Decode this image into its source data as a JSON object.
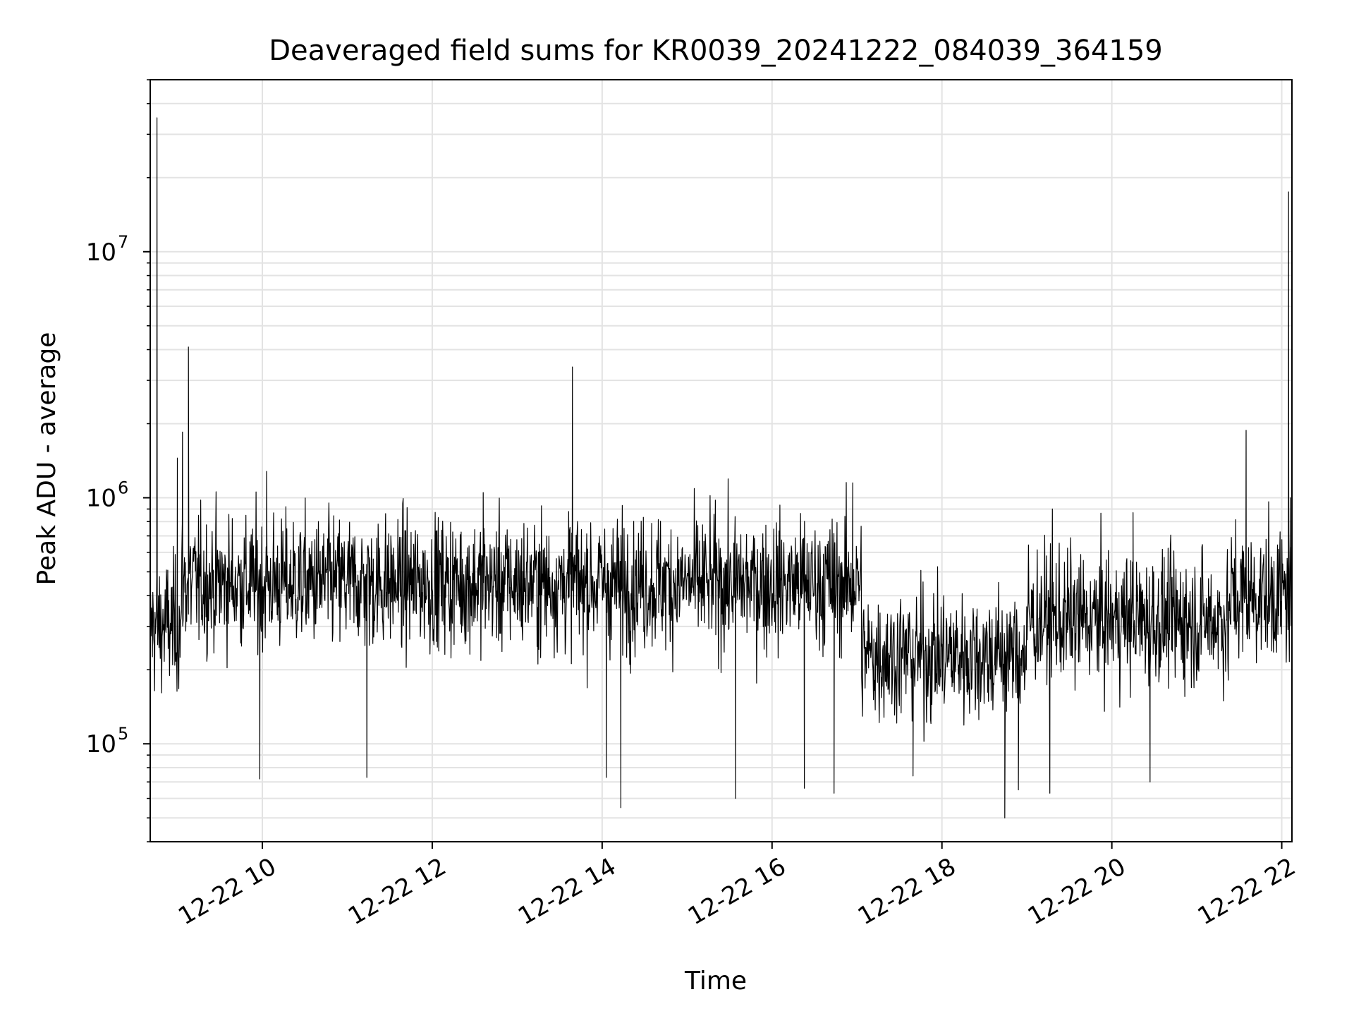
{
  "chart_data": {
    "type": "line",
    "title": "Deaveraged field sums for KR0039_20241222_084039_364159",
    "xlabel": "Time",
    "ylabel": "Peak ADU - average",
    "y_scale": "log",
    "ylim": [
      40000,
      50000000
    ],
    "x_unit": "hours on 12-22",
    "xlim": [
      8.68,
      22.12
    ],
    "grid": "major and minor, light gray",
    "x_ticks": [
      {
        "value": 10,
        "label": "12-22 10"
      },
      {
        "value": 12,
        "label": "12-22 12"
      },
      {
        "value": 14,
        "label": "12-22 14"
      },
      {
        "value": 16,
        "label": "12-22 16"
      },
      {
        "value": 18,
        "label": "12-22 18"
      },
      {
        "value": 20,
        "label": "12-22 20"
      },
      {
        "value": 22,
        "label": "12-22 22"
      }
    ],
    "y_ticks": [
      {
        "value": 100000,
        "base": "10",
        "exp": "5"
      },
      {
        "value": 1000000,
        "base": "10",
        "exp": "6"
      },
      {
        "value": 10000000,
        "base": "10",
        "exp": "7"
      }
    ],
    "series": [
      {
        "name": "deaveraged field sum",
        "color": "#000000",
        "baseline_segments": [
          {
            "x": [
              8.68,
              9.05
            ],
            "median": 300000
          },
          {
            "x": [
              9.05,
              17.05
            ],
            "median": 450000
          },
          {
            "x": [
              17.05,
              19.0
            ],
            "median": 230000
          },
          {
            "x": [
              19.0,
              21.4
            ],
            "median": 320000
          },
          {
            "x": [
              21.4,
              22.12
            ],
            "median": 400000
          }
        ],
        "spikes": [
          {
            "x": 8.76,
            "y": 35000000
          },
          {
            "x": 9.13,
            "y": 4100000
          },
          {
            "x": 9.06,
            "y": 1850000
          },
          {
            "x": 9.0,
            "y": 1450000
          },
          {
            "x": 13.65,
            "y": 3400000
          },
          {
            "x": 21.58,
            "y": 1880000
          },
          {
            "x": 22.08,
            "y": 17500000
          },
          {
            "x": 22.1,
            "y": 1000000
          },
          {
            "x": 10.05,
            "y": 1280000
          },
          {
            "x": 12.6,
            "y": 1050000
          },
          {
            "x": 16.95,
            "y": 1150000
          },
          {
            "x": 19.3,
            "y": 900000
          },
          {
            "x": 20.25,
            "y": 870000
          }
        ],
        "dips": [
          {
            "x": 14.22,
            "y": 55000
          },
          {
            "x": 18.74,
            "y": 50000
          },
          {
            "x": 15.57,
            "y": 60000
          },
          {
            "x": 16.73,
            "y": 63000
          },
          {
            "x": 16.38,
            "y": 66000
          },
          {
            "x": 19.27,
            "y": 63000
          },
          {
            "x": 18.9,
            "y": 65000
          },
          {
            "x": 9.97,
            "y": 72000
          },
          {
            "x": 11.23,
            "y": 73000
          },
          {
            "x": 14.05,
            "y": 73000
          },
          {
            "x": 20.45,
            "y": 70000
          },
          {
            "x": 17.66,
            "y": 74000
          }
        ]
      }
    ]
  }
}
